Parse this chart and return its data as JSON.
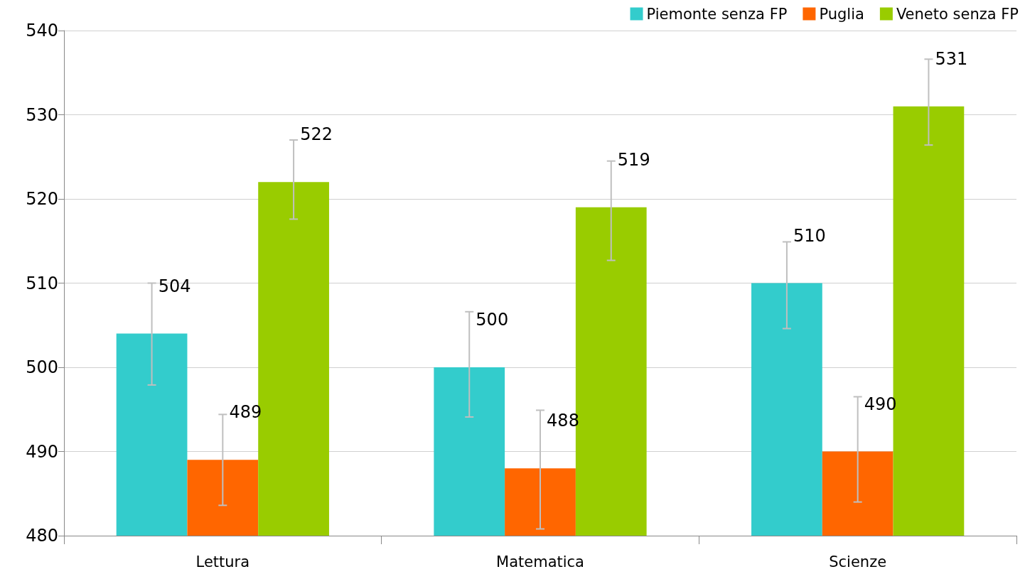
{
  "chart_data": {
    "type": "bar",
    "categories": [
      "Lettura",
      "Matematica",
      "Scienze"
    ],
    "series": [
      {
        "name": "Piemonte senza FP",
        "color": "#33cccc",
        "values": [
          504,
          500,
          510
        ],
        "errors": [
          [
            497.9,
            510.0
          ],
          [
            494.1,
            506.6
          ],
          [
            504.6,
            514.9
          ]
        ]
      },
      {
        "name": "Puglia",
        "color": "#ff6600",
        "values": [
          489,
          488,
          490
        ],
        "errors": [
          [
            483.6,
            494.4
          ],
          [
            480.8,
            494.9
          ],
          [
            484.0,
            496.5
          ]
        ]
      },
      {
        "name": "Veneto senza FP",
        "color": "#99cc00",
        "values": [
          522,
          519,
          531
        ],
        "errors": [
          [
            517.6,
            527.0
          ],
          [
            512.7,
            524.5
          ],
          [
            526.4,
            536.6
          ]
        ]
      }
    ],
    "ylim": [
      480,
      540
    ],
    "yticks": [
      480,
      490,
      500,
      510,
      520,
      530,
      540
    ],
    "grid": "y",
    "legend": "top right",
    "data_labels": true
  }
}
